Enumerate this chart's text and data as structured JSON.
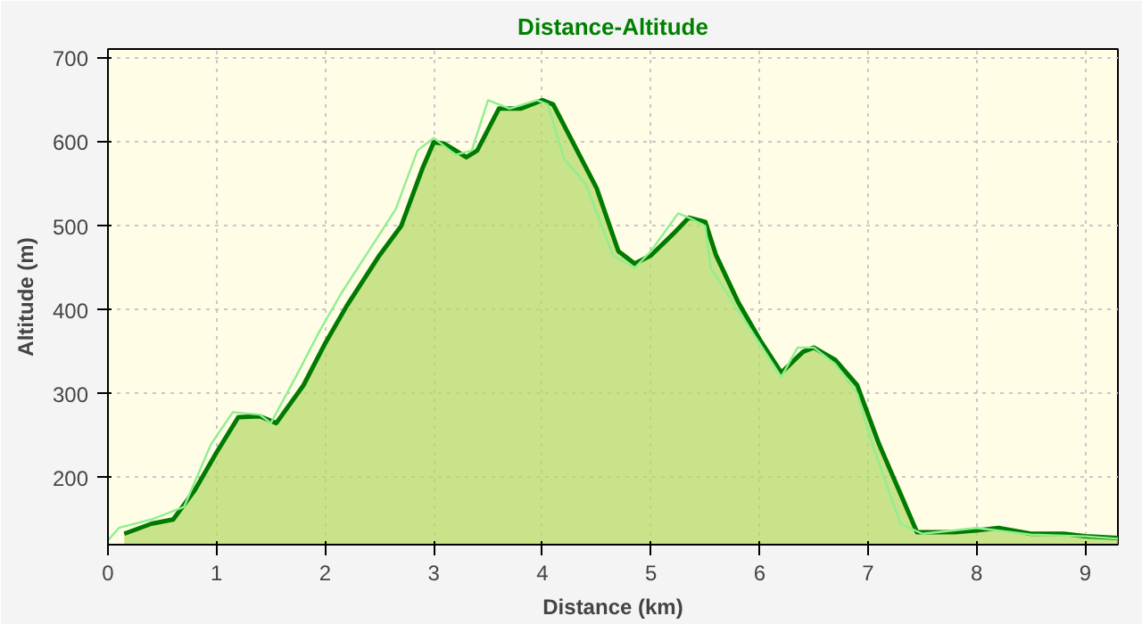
{
  "chart_data": {
    "type": "area",
    "title": "Distance-Altitude",
    "xlabel": "Distance (km)",
    "ylabel": "Altitude (m)",
    "xlim": [
      0,
      9.3
    ],
    "ylim": [
      120,
      711
    ],
    "xticks": [
      0,
      1,
      2,
      3,
      4,
      5,
      6,
      7,
      8,
      9
    ],
    "yticks": [
      200,
      300,
      400,
      500,
      600,
      700
    ],
    "grid": true,
    "series": [
      {
        "type": "area",
        "color": "#007a00",
        "x": [
          0.15,
          0.4,
          0.6,
          0.8,
          1.0,
          1.2,
          1.4,
          1.55,
          1.8,
          2.0,
          2.2,
          2.5,
          2.7,
          2.9,
          3.0,
          3.1,
          3.3,
          3.4,
          3.6,
          3.8,
          4.0,
          4.1,
          4.3,
          4.5,
          4.7,
          4.85,
          5.0,
          5.2,
          5.35,
          5.5,
          5.6,
          5.8,
          6.0,
          6.2,
          6.4,
          6.5,
          6.7,
          6.9,
          7.1,
          7.3,
          7.45,
          7.8,
          8.0,
          8.2,
          8.5,
          8.8,
          9.0,
          9.3
        ],
        "values": [
          133,
          145,
          150,
          185,
          230,
          272,
          273,
          265,
          310,
          360,
          405,
          465,
          500,
          570,
          600,
          598,
          582,
          590,
          640,
          640,
          650,
          645,
          595,
          545,
          470,
          455,
          465,
          490,
          510,
          505,
          465,
          410,
          365,
          325,
          350,
          355,
          340,
          310,
          240,
          180,
          135,
          135,
          137,
          140,
          133,
          133,
          130,
          128
        ]
      },
      {
        "type": "line",
        "color": "#90ee90",
        "x": [
          0.0,
          0.1,
          0.4,
          0.7,
          0.95,
          1.15,
          1.4,
          1.5,
          1.75,
          1.95,
          2.15,
          2.45,
          2.65,
          2.85,
          3.0,
          3.2,
          3.35,
          3.5,
          3.7,
          3.95,
          4.05,
          4.2,
          4.4,
          4.65,
          4.85,
          5.0,
          5.25,
          5.35,
          5.5,
          5.55,
          5.8,
          6.0,
          6.2,
          6.35,
          6.5,
          6.7,
          6.9,
          7.05,
          7.3,
          7.5,
          8.0,
          8.5,
          9.0,
          9.3
        ],
        "values": [
          125,
          140,
          150,
          165,
          240,
          278,
          275,
          265,
          325,
          375,
          420,
          480,
          520,
          590,
          605,
          585,
          590,
          650,
          640,
          650,
          645,
          580,
          550,
          465,
          450,
          470,
          515,
          510,
          500,
          450,
          400,
          360,
          320,
          355,
          355,
          335,
          300,
          235,
          145,
          133,
          140,
          132,
          130,
          127
        ]
      }
    ]
  }
}
